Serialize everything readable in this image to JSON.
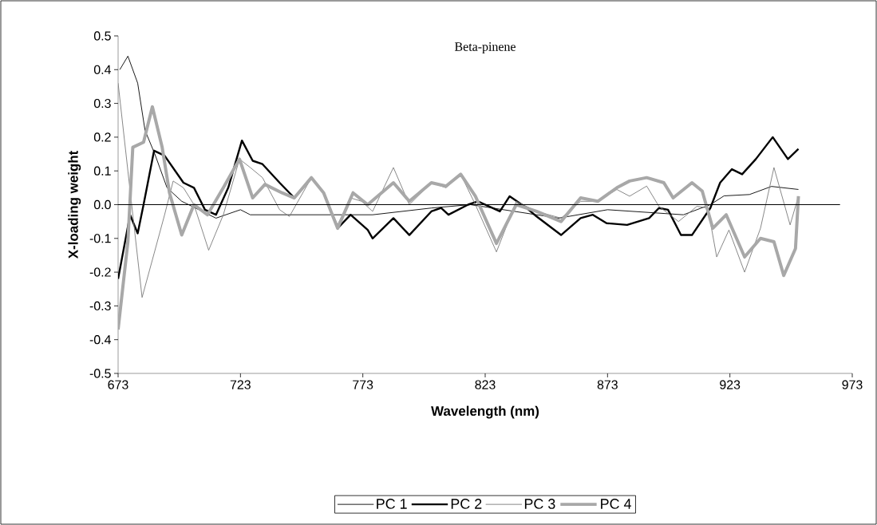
{
  "chart_data": {
    "type": "line",
    "title": "Beta-pinene",
    "xlabel": "Wavelength (nm)",
    "ylabel": "X-loading weight",
    "xlim": [
      673,
      973
    ],
    "xticks": [
      673,
      723,
      773,
      823,
      873,
      923,
      973
    ],
    "ylim": [
      -0.5,
      0.5
    ],
    "yticks": [
      -0.5,
      -0.4,
      -0.3,
      -0.2,
      -0.1,
      {
        "value": 0,
        "label": "0.0"
      },
      0.1,
      0.2,
      0.3,
      0.4,
      0.5
    ],
    "legend": "bottom",
    "ref_lines": [
      {
        "axis": "y",
        "value": 0,
        "color": "#000000"
      }
    ],
    "series": [
      {
        "name": "PC 1",
        "color": "#000000",
        "x": [
          673.7,
          677,
          681,
          684,
          688,
          693,
          699,
          713,
          723,
          727,
          777,
          801,
          817,
          853,
          873,
          904,
          915,
          920.6,
          931,
          940,
          951
        ],
        "values": [
          0.4,
          0.44,
          0.36,
          0.22,
          0.15,
          0.05,
          0.01,
          -0.04,
          -0.015,
          -0.03,
          -0.03,
          -0.01,
          0.0,
          -0.04,
          -0.015,
          -0.03,
          0.0,
          0.026,
          0.03,
          0.054,
          0.045
        ]
      },
      {
        "name": "PC 2",
        "color": "#000000",
        "x": [
          673,
          677.9,
          681,
          683.4,
          687.7,
          692,
          699.7,
          704,
          708.5,
          713,
          718,
          723.6,
          728,
          732,
          739,
          745,
          752,
          757,
          762.7,
          768,
          775,
          777,
          785.5,
          792,
          801,
          805,
          808,
          816,
          820,
          829,
          833,
          840,
          844,
          854,
          862,
          867,
          872.6,
          881,
          890,
          894,
          897.7,
          903,
          907.5,
          915,
          919,
          923.8,
          928,
          933.6,
          940.5,
          946.7,
          951
        ],
        "values": [
          -0.22,
          -0.03,
          -0.085,
          0.0,
          0.16,
          0.145,
          0.065,
          0.05,
          -0.015,
          -0.03,
          0.05,
          0.19,
          0.13,
          0.12,
          0.065,
          0.02,
          0.08,
          0.035,
          -0.07,
          -0.03,
          -0.075,
          -0.1,
          -0.04,
          -0.09,
          -0.02,
          -0.01,
          -0.03,
          0.0,
          0.01,
          -0.02,
          0.025,
          -0.01,
          -0.035,
          -0.09,
          -0.04,
          -0.03,
          -0.055,
          -0.06,
          -0.04,
          -0.01,
          -0.015,
          -0.09,
          -0.09,
          -0.01,
          0.065,
          0.105,
          0.09,
          0.135,
          0.2,
          0.135,
          0.165
        ]
      },
      {
        "name": "PC 3",
        "color": "#7a7a7a",
        "x": [
          673,
          677,
          682.8,
          687.7,
          692,
          695.5,
          699.7,
          704,
          710,
          716,
          722.6,
          727,
          732,
          739,
          743,
          752,
          757,
          762.7,
          768,
          772.5,
          777,
          785.5,
          792,
          801,
          807,
          813,
          819,
          827.6,
          835.7,
          844,
          854,
          862,
          869,
          876.8,
          882,
          889,
          894,
          902,
          909.5,
          914,
          917.6,
          922.6,
          929,
          935.5,
          941,
          947.6,
          951
        ],
        "values": [
          0.36,
          0.1,
          -0.275,
          -0.145,
          -0.03,
          0.07,
          0.05,
          0.0,
          -0.135,
          -0.03,
          0.135,
          0.11,
          0.08,
          -0.015,
          -0.035,
          0.08,
          0.035,
          -0.06,
          0.02,
          0.01,
          -0.02,
          0.11,
          0.0,
          0.065,
          0.05,
          0.09,
          0.0,
          -0.14,
          0.01,
          -0.02,
          -0.04,
          0.01,
          0.01,
          0.045,
          0.025,
          0.055,
          -0.005,
          -0.05,
          -0.005,
          -0.01,
          -0.155,
          -0.075,
          -0.2,
          -0.07,
          0.11,
          -0.06,
          0.025
        ]
      },
      {
        "name": "PC 4",
        "color": "#a8a8a8",
        "x": [
          673,
          677,
          679,
          683.4,
          687,
          691,
          694,
          699,
          704,
          709.5,
          716,
          722.6,
          728,
          733,
          740,
          745,
          752,
          757,
          762.7,
          769,
          775,
          785.5,
          792,
          801,
          807,
          813,
          819,
          827.6,
          835.7,
          844,
          854,
          862,
          869,
          876.8,
          882,
          889,
          896,
          899.8,
          907.5,
          911.7,
          916,
          921.5,
          929,
          935.5,
          941,
          945,
          949.8,
          951
        ],
        "values": [
          -0.37,
          -0.11,
          0.17,
          0.185,
          0.29,
          0.17,
          0.035,
          -0.09,
          0.0,
          -0.03,
          0.05,
          0.135,
          0.02,
          0.06,
          0.035,
          0.02,
          0.08,
          0.035,
          -0.07,
          0.035,
          0.0,
          0.065,
          0.01,
          0.065,
          0.055,
          0.09,
          0.025,
          -0.115,
          0.0,
          -0.02,
          -0.05,
          0.02,
          0.01,
          0.05,
          0.07,
          0.08,
          0.065,
          0.02,
          0.065,
          0.04,
          -0.07,
          -0.03,
          -0.155,
          -0.1,
          -0.11,
          -0.21,
          -0.13,
          0.025
        ]
      }
    ]
  }
}
